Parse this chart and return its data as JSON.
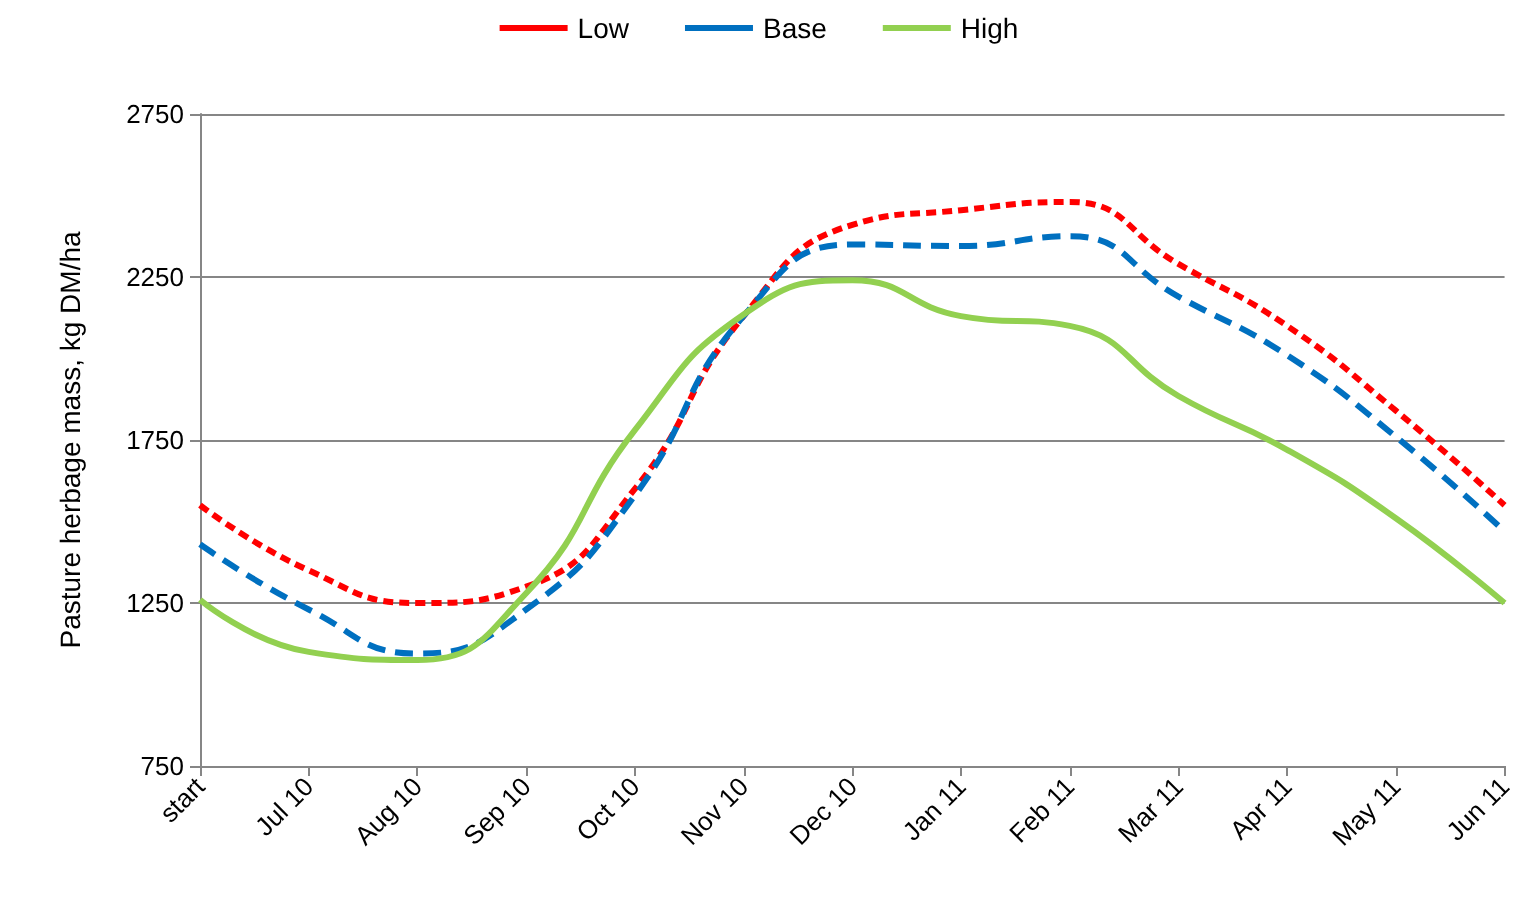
{
  "chart_data": {
    "type": "line",
    "ylabel": "Pasture herbage mass, kg DM/ha",
    "categories": [
      "start",
      "Jul 10",
      "Aug 10",
      "Sep 10",
      "Oct 10",
      "Nov 10",
      "Dec 10",
      "Jan 11",
      "Feb 11",
      "Mar 11",
      "Apr 11",
      "May 11",
      "Jun 11"
    ],
    "series": [
      {
        "name": "Low",
        "color": "#ff0000",
        "line_style": "dotted",
        "values": [
          1550,
          1350,
          1250,
          1300,
          1600,
          2130,
          2410,
          2455,
          2480,
          2290,
          2100,
          1840,
          1550
        ]
      },
      {
        "name": "Base",
        "color": "#0070c0",
        "line_style": "dashed",
        "values": [
          1430,
          1230,
          1095,
          1230,
          1580,
          2130,
          2350,
          2345,
          2375,
          2190,
          2010,
          1760,
          1470
        ]
      },
      {
        "name": "High",
        "color": "#92d050",
        "line_style": "solid",
        "values": [
          1260,
          1100,
          1075,
          1280,
          1780,
          2135,
          2240,
          2130,
          2100,
          1885,
          1720,
          1510,
          1250
        ]
      }
    ],
    "ylim": [
      750,
      2750
    ],
    "yticks": [
      750,
      1250,
      1750,
      2250,
      2750
    ],
    "grid": "y",
    "legend": "top",
    "marker": "none"
  }
}
